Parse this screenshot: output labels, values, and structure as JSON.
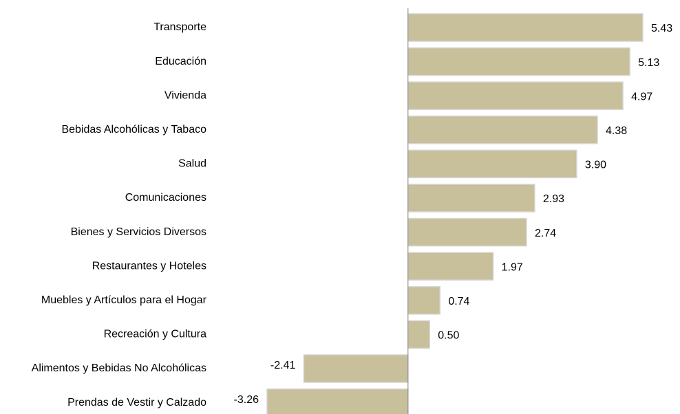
{
  "chart_data": {
    "type": "barh",
    "categories": [
      "Transporte",
      "Educación",
      "Vivienda",
      "Bebidas Alcohólicas y Tabaco",
      "Salud",
      "Comunicaciones",
      "Bienes y Servicios Diversos",
      "Restaurantes y Hoteles",
      "Muebles y Artículos para el Hogar",
      "Recreación y Cultura",
      "Alimentos y Bebidas No Alcohólicas",
      "Prendas de Vestir y Calzado"
    ],
    "values": [
      5.43,
      5.13,
      4.97,
      4.38,
      3.9,
      2.93,
      2.74,
      1.97,
      0.74,
      0.5,
      -2.41,
      -3.26
    ],
    "value_labels": [
      "5.43",
      "5.13",
      "4.97",
      "4.38",
      "3.90",
      "2.93",
      "2.74",
      "1.97",
      "0.74",
      "0.50",
      "-2.41",
      "-3.26"
    ],
    "color": "#c8bf9b"
  }
}
